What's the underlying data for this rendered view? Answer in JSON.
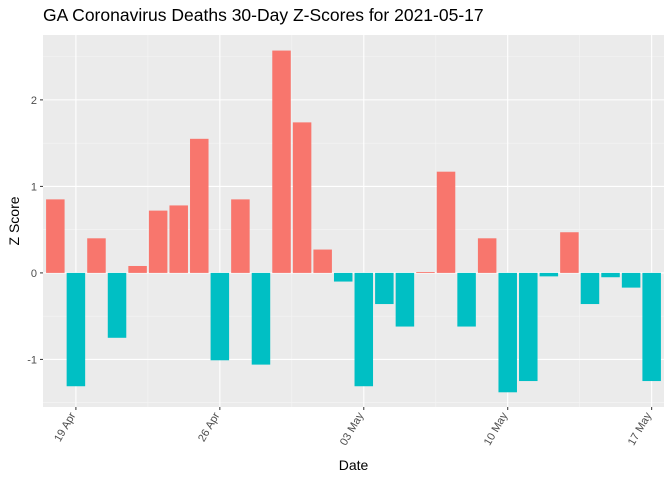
{
  "chart_data": {
    "type": "bar",
    "title": "GA Coronavirus Deaths 30-Day Z-Scores for 2021-05-17",
    "xlabel": "Date",
    "ylabel": "Z Score",
    "ylim": [
      -1.55,
      2.75
    ],
    "y_ticks": [
      -1,
      0,
      1,
      2
    ],
    "x_ticks": [
      {
        "label": "19 Apr",
        "day": 2
      },
      {
        "label": "26 Apr",
        "day": 9
      },
      {
        "label": "03 May",
        "day": 16
      },
      {
        "label": "10 May",
        "day": 23
      },
      {
        "label": "17 May",
        "day": 30
      }
    ],
    "legend": "none",
    "colors": {
      "positive": "#F8766D",
      "negative": "#00BFC4",
      "panel": "#EBEBEB",
      "grid_major": "#FFFFFF",
      "grid_minor": "#F5F5F5"
    },
    "dates": [
      "2021-04-18",
      "2021-04-19",
      "2021-04-20",
      "2021-04-21",
      "2021-04-22",
      "2021-04-23",
      "2021-04-24",
      "2021-04-25",
      "2021-04-26",
      "2021-04-27",
      "2021-04-28",
      "2021-04-29",
      "2021-04-30",
      "2021-05-01",
      "2021-05-02",
      "2021-05-03",
      "2021-05-04",
      "2021-05-05",
      "2021-05-06",
      "2021-05-07",
      "2021-05-08",
      "2021-05-09",
      "2021-05-10",
      "2021-05-11",
      "2021-05-12",
      "2021-05-13",
      "2021-05-14",
      "2021-05-15",
      "2021-05-16",
      "2021-05-17"
    ],
    "values": [
      0.85,
      -1.31,
      0.4,
      -0.75,
      0.08,
      0.72,
      0.78,
      1.55,
      -1.01,
      0.85,
      -1.06,
      2.57,
      1.74,
      0.27,
      -0.1,
      -1.31,
      -0.36,
      -0.62,
      0.01,
      1.17,
      -0.62,
      0.4,
      -1.38,
      -1.25,
      -0.04,
      0.47,
      -0.36,
      -0.05,
      -0.17,
      -1.25
    ]
  }
}
